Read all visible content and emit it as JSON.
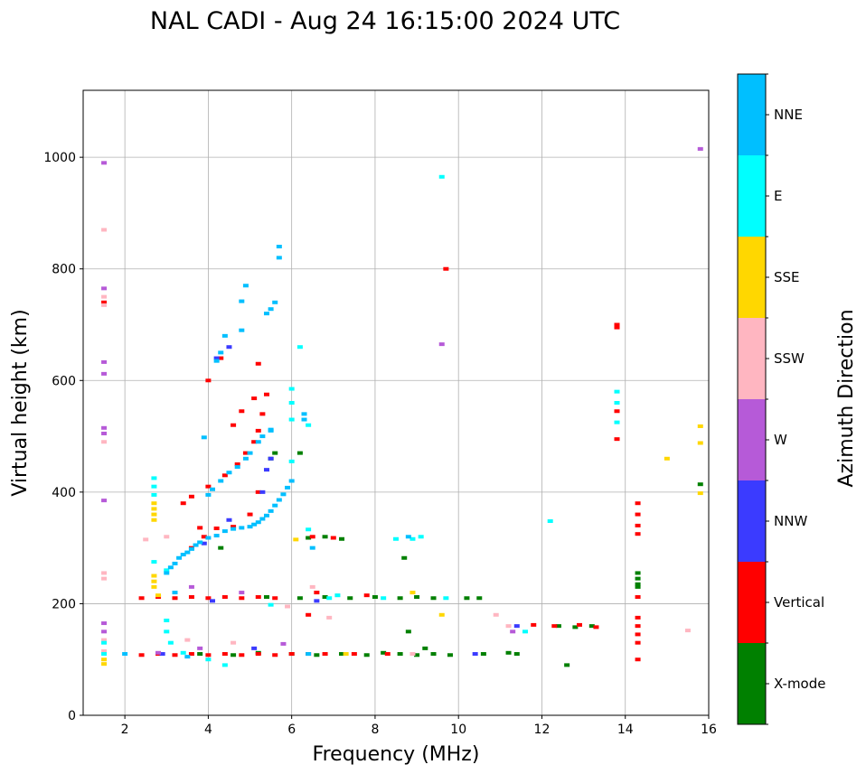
{
  "chart_data": {
    "type": "scatter",
    "title": "NAL CADI - Aug 24 16:15:00 2024 UTC",
    "xlabel": "Frequency (MHz)",
    "ylabel": "Virtual height (km)",
    "xlim": [
      1.0,
      16.0
    ],
    "ylim": [
      0,
      1120
    ],
    "xticks": [
      2,
      4,
      6,
      8,
      10,
      12,
      14,
      16
    ],
    "yticks": [
      0,
      200,
      400,
      600,
      800,
      1000
    ],
    "grid": true,
    "colorbar": {
      "label": "Azimuth Direction",
      "categories": [
        "X-mode",
        "Vertical",
        "NNW",
        "W",
        "SSW",
        "SSE",
        "E",
        "NNE"
      ],
      "colors": [
        "#008000",
        "#ff0000",
        "#3b3bff",
        "#b65ad8",
        "#ffb6c1",
        "#ffd700",
        "#00ffff",
        "#00bfff"
      ]
    },
    "series": [
      {
        "name": "X-mode",
        "points": [
          [
            3.8,
            110
          ],
          [
            4.6,
            108
          ],
          [
            5.2,
            112
          ],
          [
            6.0,
            110
          ],
          [
            6.6,
            108
          ],
          [
            7.2,
            110
          ],
          [
            7.8,
            108
          ],
          [
            8.2,
            112
          ],
          [
            8.6,
            110
          ],
          [
            9.0,
            108
          ],
          [
            9.4,
            110
          ],
          [
            9.8,
            108
          ],
          [
            10.6,
            110
          ],
          [
            11.2,
            112
          ],
          [
            11.4,
            110
          ],
          [
            5.4,
            212
          ],
          [
            6.2,
            210
          ],
          [
            6.8,
            212
          ],
          [
            7.4,
            210
          ],
          [
            8.0,
            212
          ],
          [
            8.6,
            210
          ],
          [
            9.0,
            212
          ],
          [
            9.4,
            210
          ],
          [
            10.2,
            210
          ],
          [
            10.5,
            210
          ],
          [
            12.4,
            160
          ],
          [
            12.8,
            158
          ],
          [
            13.2,
            160
          ],
          [
            12.6,
            90
          ],
          [
            14.3,
            255
          ],
          [
            14.3,
            245
          ],
          [
            14.3,
            235
          ],
          [
            14.3,
            230
          ],
          [
            6.4,
            318
          ],
          [
            6.8,
            320
          ],
          [
            7.2,
            316
          ],
          [
            8.7,
            282
          ],
          [
            4.3,
            300
          ],
          [
            5.5,
            460
          ],
          [
            5.6,
            470
          ],
          [
            6.2,
            470
          ],
          [
            15.8,
            414
          ],
          [
            9.2,
            120
          ],
          [
            8.8,
            150
          ]
        ]
      },
      {
        "name": "Vertical",
        "points": [
          [
            2.4,
            108
          ],
          [
            2.8,
            110
          ],
          [
            3.2,
            108
          ],
          [
            3.6,
            110
          ],
          [
            4.0,
            108
          ],
          [
            4.4,
            110
          ],
          [
            4.8,
            108
          ],
          [
            5.2,
            110
          ],
          [
            5.6,
            108
          ],
          [
            6.0,
            110
          ],
          [
            6.4,
            110
          ],
          [
            6.8,
            110
          ],
          [
            7.5,
            110
          ],
          [
            8.3,
            110
          ],
          [
            2.4,
            210
          ],
          [
            2.8,
            212
          ],
          [
            3.2,
            210
          ],
          [
            3.6,
            212
          ],
          [
            4.0,
            210
          ],
          [
            4.4,
            212
          ],
          [
            4.8,
            210
          ],
          [
            5.2,
            212
          ],
          [
            5.6,
            210
          ],
          [
            6.6,
            220
          ],
          [
            6.4,
            180
          ],
          [
            7.8,
            215
          ],
          [
            12.3,
            160
          ],
          [
            12.9,
            162
          ],
          [
            13.3,
            158
          ],
          [
            11.8,
            162
          ],
          [
            14.3,
            380
          ],
          [
            14.3,
            360
          ],
          [
            14.3,
            340
          ],
          [
            14.3,
            325
          ],
          [
            14.3,
            175
          ],
          [
            14.3,
            160
          ],
          [
            14.3,
            145
          ],
          [
            14.3,
            130
          ],
          [
            14.3,
            100
          ],
          [
            14.3,
            212
          ],
          [
            13.8,
            700
          ],
          [
            13.8,
            695
          ],
          [
            13.8,
            545
          ],
          [
            13.8,
            495
          ],
          [
            9.7,
            800
          ],
          [
            3.4,
            380
          ],
          [
            3.6,
            392
          ],
          [
            4.0,
            410
          ],
          [
            4.4,
            430
          ],
          [
            4.7,
            450
          ],
          [
            4.9,
            470
          ],
          [
            5.1,
            490
          ],
          [
            5.2,
            510
          ],
          [
            5.3,
            540
          ],
          [
            5.4,
            575
          ],
          [
            5.2,
            630
          ],
          [
            4.0,
            600
          ],
          [
            4.3,
            640
          ],
          [
            3.8,
            336
          ],
          [
            4.2,
            335
          ],
          [
            4.6,
            338
          ],
          [
            3.9,
            320
          ],
          [
            3.6,
            300
          ],
          [
            7.0,
            318
          ],
          [
            6.5,
            320
          ],
          [
            5.2,
            400
          ],
          [
            5.0,
            360
          ],
          [
            4.6,
            520
          ],
          [
            4.8,
            545
          ],
          [
            5.1,
            568
          ],
          [
            1.5,
            740
          ]
        ]
      },
      {
        "name": "NNW",
        "points": [
          [
            4.2,
            640
          ],
          [
            4.5,
            660
          ],
          [
            5.3,
            400
          ],
          [
            5.4,
            440
          ],
          [
            4.5,
            350
          ],
          [
            3.9,
            308
          ],
          [
            5.1,
            120
          ],
          [
            2.9,
            110
          ],
          [
            11.4,
            160
          ],
          [
            5.5,
            460
          ],
          [
            6.6,
            205
          ],
          [
            4.1,
            205
          ],
          [
            10.4,
            110
          ]
        ]
      },
      {
        "name": "W",
        "points": [
          [
            1.5,
            990
          ],
          [
            1.5,
            765
          ],
          [
            1.5,
            633
          ],
          [
            1.5,
            612
          ],
          [
            1.5,
            515
          ],
          [
            1.5,
            505
          ],
          [
            1.5,
            385
          ],
          [
            1.5,
            165
          ],
          [
            1.5,
            150
          ],
          [
            2.8,
            112
          ],
          [
            3.8,
            120
          ],
          [
            5.8,
            128
          ],
          [
            9.6,
            665
          ],
          [
            11.3,
            150
          ],
          [
            15.8,
            1015
          ],
          [
            4.8,
            220
          ],
          [
            3.6,
            230
          ]
        ]
      },
      {
        "name": "SSW",
        "points": [
          [
            1.5,
            870
          ],
          [
            1.5,
            750
          ],
          [
            1.5,
            735
          ],
          [
            1.5,
            490
          ],
          [
            1.5,
            255
          ],
          [
            1.5,
            245
          ],
          [
            1.5,
            135
          ],
          [
            1.5,
            115
          ],
          [
            2.5,
            315
          ],
          [
            3.0,
            320
          ],
          [
            5.9,
            195
          ],
          [
            6.5,
            230
          ],
          [
            6.9,
            175
          ],
          [
            8.9,
            110
          ],
          [
            10.9,
            180
          ],
          [
            11.2,
            160
          ],
          [
            15.5,
            152
          ],
          [
            3.5,
            135
          ],
          [
            4.6,
            130
          ],
          [
            7.1,
            215
          ]
        ]
      },
      {
        "name": "SSE",
        "points": [
          [
            1.5,
            100
          ],
          [
            1.5,
            92
          ],
          [
            2.7,
            250
          ],
          [
            2.7,
            240
          ],
          [
            2.7,
            230
          ],
          [
            2.7,
            370
          ],
          [
            2.7,
            360
          ],
          [
            2.7,
            350
          ],
          [
            2.7,
            380
          ],
          [
            2.8,
            215
          ],
          [
            8.9,
            220
          ],
          [
            9.6,
            180
          ],
          [
            15.0,
            460
          ],
          [
            15.8,
            518
          ],
          [
            15.8,
            488
          ],
          [
            15.8,
            398
          ],
          [
            7.3,
            110
          ],
          [
            6.1,
            315
          ]
        ]
      },
      {
        "name": "E",
        "points": [
          [
            1.5,
            110
          ],
          [
            1.5,
            130
          ],
          [
            2.7,
            425
          ],
          [
            2.7,
            410
          ],
          [
            2.7,
            395
          ],
          [
            2.7,
            275
          ],
          [
            3.0,
            260
          ],
          [
            3.0,
            170
          ],
          [
            3.0,
            150
          ],
          [
            3.1,
            130
          ],
          [
            3.4,
            112
          ],
          [
            4.0,
            100
          ],
          [
            4.4,
            90
          ],
          [
            5.5,
            198
          ],
          [
            6.0,
            585
          ],
          [
            6.0,
            560
          ],
          [
            6.0,
            530
          ],
          [
            6.4,
            520
          ],
          [
            6.0,
            455
          ],
          [
            6.4,
            333
          ],
          [
            6.9,
            210
          ],
          [
            7.1,
            215
          ],
          [
            8.2,
            210
          ],
          [
            9.7,
            210
          ],
          [
            9.6,
            965
          ],
          [
            12.2,
            348
          ],
          [
            13.8,
            580
          ],
          [
            13.8,
            560
          ],
          [
            13.8,
            525
          ],
          [
            8.5,
            316
          ],
          [
            8.9,
            316
          ],
          [
            9.1,
            320
          ],
          [
            6.2,
            660
          ],
          [
            11.6,
            150
          ]
        ]
      },
      {
        "name": "NNE",
        "points": [
          [
            3.0,
            255
          ],
          [
            3.1,
            265
          ],
          [
            3.2,
            272
          ],
          [
            3.3,
            282
          ],
          [
            3.4,
            288
          ],
          [
            3.5,
            292
          ],
          [
            3.6,
            298
          ],
          [
            3.7,
            305
          ],
          [
            3.8,
            310
          ],
          [
            4.0,
            318
          ],
          [
            4.2,
            322
          ],
          [
            4.4,
            330
          ],
          [
            4.6,
            334
          ],
          [
            4.8,
            336
          ],
          [
            5.0,
            338
          ],
          [
            5.1,
            342
          ],
          [
            5.2,
            346
          ],
          [
            5.3,
            352
          ],
          [
            5.4,
            358
          ],
          [
            5.5,
            366
          ],
          [
            5.6,
            376
          ],
          [
            5.7,
            386
          ],
          [
            5.8,
            396
          ],
          [
            5.9,
            408
          ],
          [
            6.0,
            420
          ],
          [
            4.0,
            395
          ],
          [
            4.1,
            405
          ],
          [
            4.3,
            420
          ],
          [
            4.5,
            435
          ],
          [
            4.7,
            445
          ],
          [
            4.9,
            460
          ],
          [
            5.0,
            470
          ],
          [
            5.2,
            490
          ],
          [
            5.3,
            500
          ],
          [
            5.5,
            510
          ],
          [
            4.2,
            635
          ],
          [
            4.3,
            650
          ],
          [
            4.4,
            680
          ],
          [
            5.4,
            720
          ],
          [
            5.5,
            728
          ],
          [
            5.6,
            740
          ],
          [
            4.9,
            770
          ],
          [
            5.7,
            820
          ],
          [
            5.7,
            840
          ],
          [
            4.8,
            742
          ],
          [
            4.8,
            690
          ],
          [
            5.5,
            512
          ],
          [
            3.9,
            498
          ],
          [
            6.3,
            540
          ],
          [
            6.3,
            530
          ],
          [
            6.5,
            300
          ],
          [
            8.8,
            320
          ],
          [
            3.2,
            220
          ],
          [
            3.5,
            105
          ],
          [
            6.4,
            110
          ],
          [
            2.0,
            110
          ]
        ]
      }
    ]
  }
}
